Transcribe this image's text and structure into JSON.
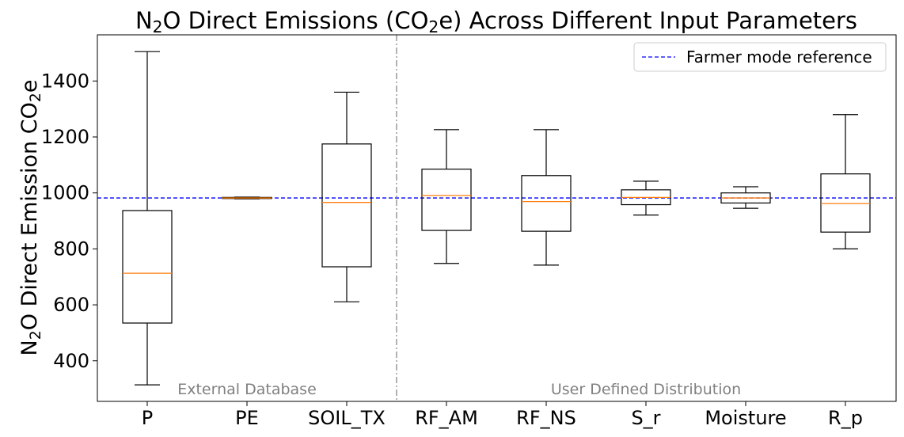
{
  "chart_data": {
    "type": "box",
    "title_parts": [
      "N",
      "2",
      "O Direct Emissions (CO",
      "2",
      "e) Across Different Input Parameters"
    ],
    "ylabel_parts": [
      "N",
      "2",
      "O Direct Emission CO",
      "2",
      "e"
    ],
    "xlabel": "",
    "categories": [
      "P",
      "PE",
      "SOIL_TX",
      "RF_AM",
      "RF_NS",
      "S_r",
      "Moisture",
      "R_p"
    ],
    "boxes": [
      {
        "whisker_low": 314,
        "q1": 535,
        "median": 713,
        "q3": 937,
        "whisker_high": 1505
      },
      {
        "whisker_low": 979,
        "q1": 980,
        "median": 982,
        "q3": 984,
        "whisker_high": 985
      },
      {
        "whisker_low": 611,
        "q1": 736,
        "median": 966,
        "q3": 1175,
        "whisker_high": 1360
      },
      {
        "whisker_low": 748,
        "q1": 866,
        "median": 991,
        "q3": 1085,
        "whisker_high": 1226
      },
      {
        "whisker_low": 742,
        "q1": 863,
        "median": 969,
        "q3": 1062,
        "whisker_high": 1226
      },
      {
        "whisker_low": 921,
        "q1": 958,
        "median": 984,
        "q3": 1011,
        "whisker_high": 1042
      },
      {
        "whisker_low": 945,
        "q1": 964,
        "median": 982,
        "q3": 1000,
        "whisker_high": 1022
      },
      {
        "whisker_low": 800,
        "q1": 860,
        "median": 962,
        "q3": 1068,
        "whisker_high": 1280
      }
    ],
    "reference_line": {
      "label": "Farmer mode reference",
      "value": 982,
      "color": "#0000ff",
      "style": "dashed"
    },
    "divider_after_index": 2,
    "divider_style": "dashdot",
    "groups": [
      {
        "label": "External Database",
        "categories": [
          "P",
          "PE",
          "SOIL_TX"
        ]
      },
      {
        "label": "User Defined Distribution",
        "categories": [
          "RF_AM",
          "RF_NS",
          "S_r",
          "Moisture",
          "R_p"
        ]
      }
    ],
    "yticks": [
      400,
      600,
      800,
      1000,
      1200,
      1400
    ],
    "ylim": [
      255,
      1565
    ],
    "legend_position": "upper right",
    "grid": false,
    "colors": {
      "box": "#000000",
      "median": "#ff7f0e",
      "reference": "#0000ff",
      "divider": "#808080",
      "group_label": "#808080"
    }
  }
}
